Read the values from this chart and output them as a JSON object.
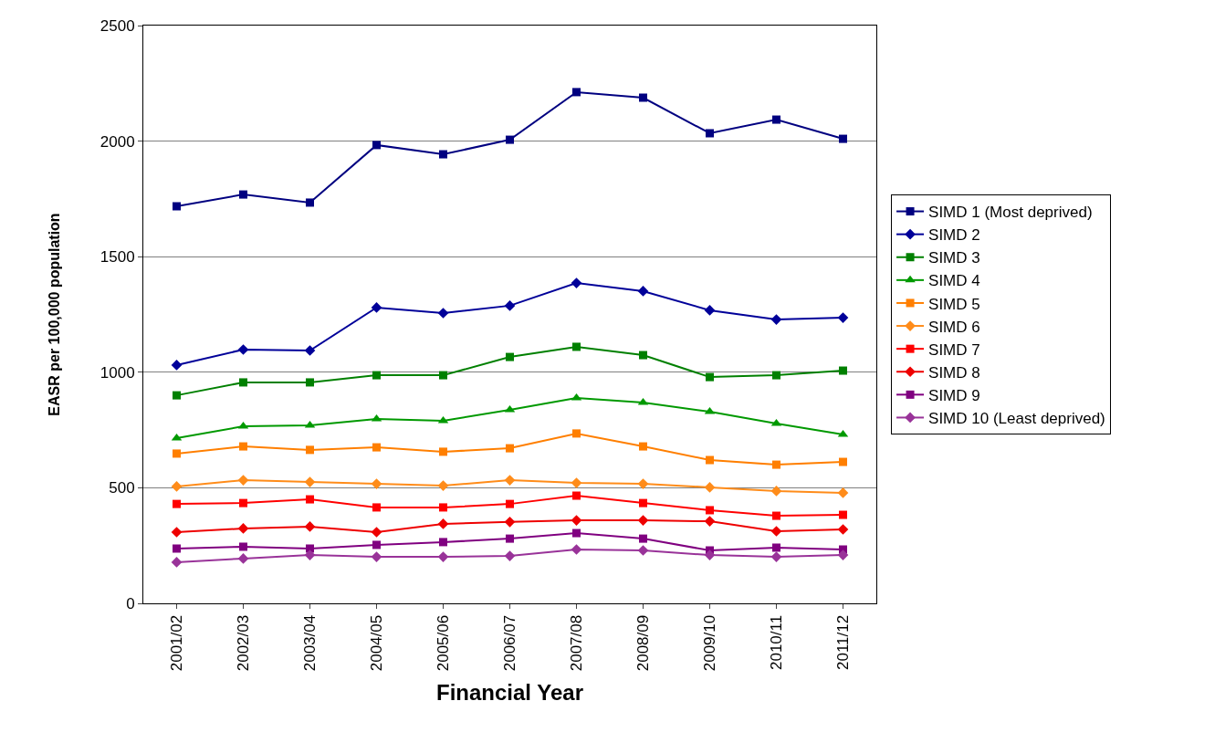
{
  "chart_data": {
    "type": "line",
    "xlabel": "Financial Year",
    "ylabel": "EASR per 100,000 population",
    "categories": [
      "2001/02",
      "2002/03",
      "2003/04",
      "2004/05",
      "2005/06",
      "2006/07",
      "2007/08",
      "2008/09",
      "2009/10",
      "2010/11",
      "2011/12"
    ],
    "ylim": [
      0,
      2500
    ],
    "yticks": [
      0,
      500,
      1000,
      1500,
      2000,
      2500
    ],
    "grid": "y",
    "legend": "right",
    "line_style": "solid",
    "series": [
      {
        "name": "SIMD 1 (Most deprived)",
        "color": "#000080",
        "marker": "square",
        "values": [
          1718,
          1769,
          1734,
          1983,
          1943,
          2006,
          2212,
          2188,
          2034,
          2093,
          2010
        ]
      },
      {
        "name": "SIMD 2",
        "color": "#000099",
        "marker": "diamond",
        "values": [
          1031,
          1098,
          1094,
          1280,
          1256,
          1288,
          1386,
          1351,
          1268,
          1228,
          1236
        ]
      },
      {
        "name": "SIMD 3",
        "color": "#008000",
        "marker": "square",
        "values": [
          900,
          956,
          956,
          987,
          987,
          1066,
          1110,
          1074,
          979,
          987,
          1007
        ]
      },
      {
        "name": "SIMD 4",
        "color": "#009900",
        "marker": "triangle",
        "values": [
          715,
          766,
          770,
          798,
          790,
          837,
          889,
          869,
          829,
          778,
          731
        ]
      },
      {
        "name": "SIMD 5",
        "color": "#ff7f00",
        "marker": "square",
        "values": [
          648,
          679,
          664,
          675,
          656,
          671,
          735,
          679,
          620,
          600,
          612
        ]
      },
      {
        "name": "SIMD 6",
        "color": "#ff8c1a",
        "marker": "diamond",
        "values": [
          506,
          533,
          525,
          517,
          509,
          533,
          521,
          517,
          502,
          486,
          478
        ]
      },
      {
        "name": "SIMD 7",
        "color": "#ff0000",
        "marker": "square",
        "values": [
          430,
          434,
          450,
          415,
          415,
          430,
          466,
          434,
          403,
          379,
          383
        ]
      },
      {
        "name": "SIMD 8",
        "color": "#ee0000",
        "marker": "diamond",
        "values": [
          308,
          324,
          332,
          308,
          344,
          352,
          359,
          359,
          355,
          312,
          320
        ]
      },
      {
        "name": "SIMD 9",
        "color": "#800080",
        "marker": "square",
        "values": [
          237,
          245,
          237,
          253,
          265,
          280,
          304,
          280,
          229,
          241,
          233
        ]
      },
      {
        "name": "SIMD 10 (Least deprived)",
        "color": "#993399",
        "marker": "diamond",
        "values": [
          178,
          194,
          209,
          201,
          201,
          205,
          233,
          229,
          209,
          201,
          209
        ]
      }
    ]
  }
}
